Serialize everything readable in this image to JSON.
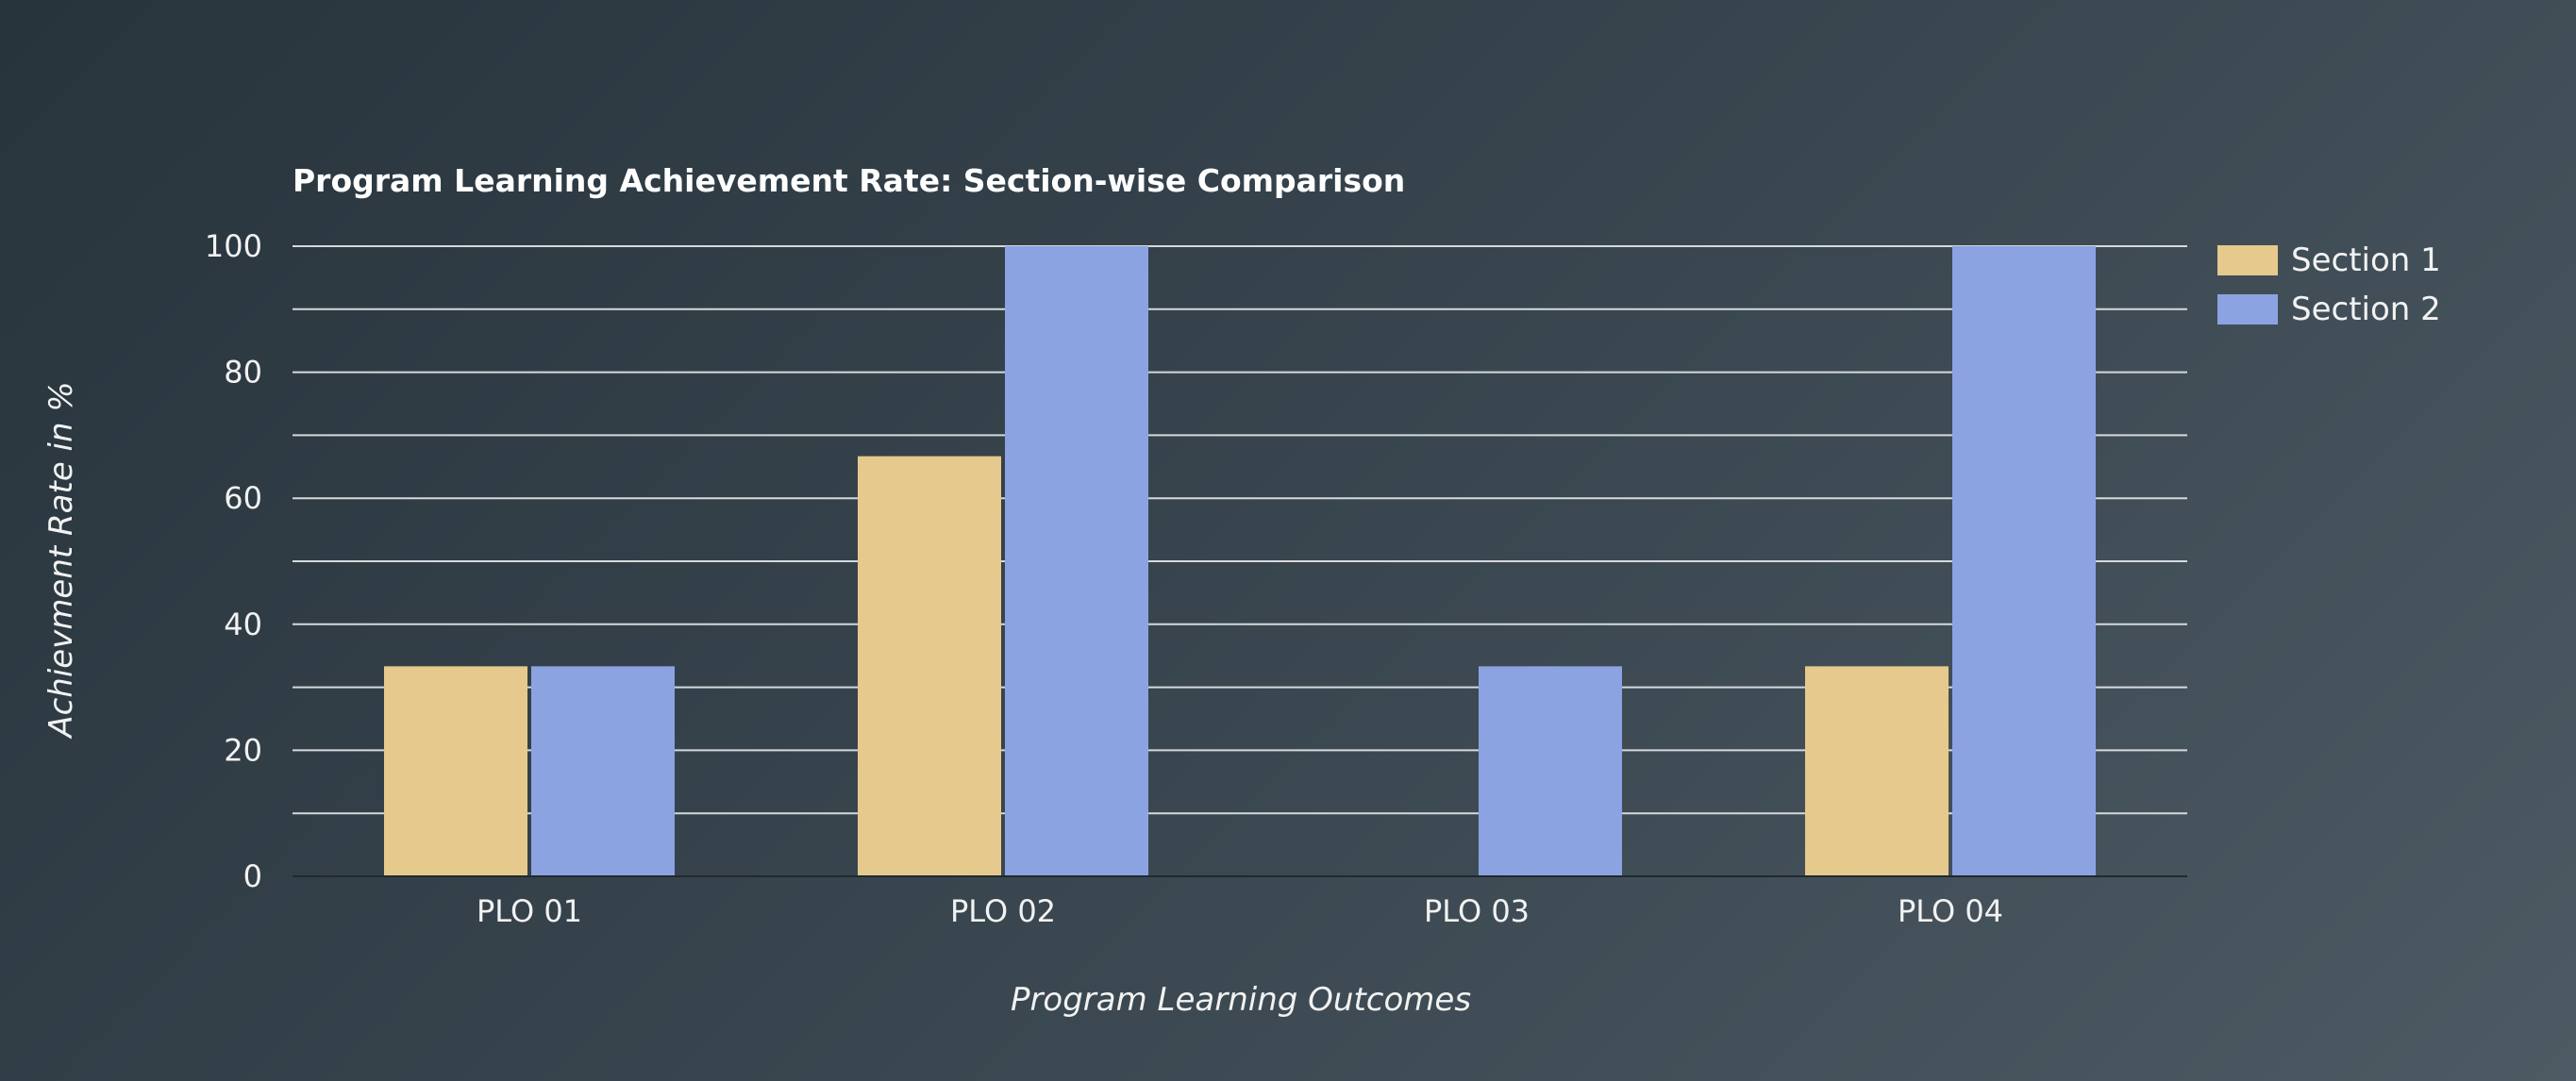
{
  "chart_data": {
    "type": "bar",
    "title": "Program Learning Achievement Rate: Section-wise Comparison",
    "xlabel": "Program Learning Outcomes",
    "ylabel": "Achievment Rate in %",
    "categories": [
      "PLO 01",
      "PLO 02",
      "PLO 03",
      "PLO 04"
    ],
    "series": [
      {
        "name": "Section 1",
        "values": [
          33.33,
          66.67,
          0,
          33.33
        ],
        "color": "#e6c98c"
      },
      {
        "name": "Section 2",
        "values": [
          33.33,
          100,
          33.33,
          100
        ],
        "color": "#8ca3e2"
      }
    ],
    "ylim": [
      0,
      100
    ],
    "yticks": [
      "0",
      "20",
      "40",
      "60",
      "80",
      "100"
    ],
    "grid": true,
    "legend": "top-right"
  }
}
